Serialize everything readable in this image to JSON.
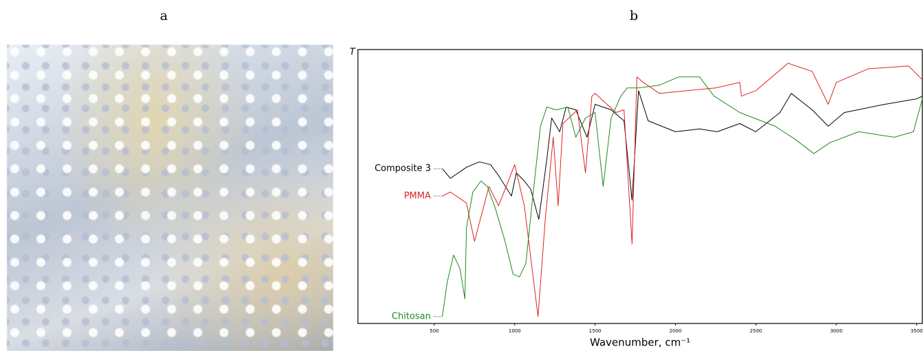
{
  "panel_labels": {
    "a": "a",
    "b": "b"
  },
  "chart_data": {
    "type": "line",
    "x_label": "Wavenumber, cm⁻¹",
    "y_label": "T",
    "xlim": [
      25,
      3535
    ],
    "ylim": [
      0,
      100
    ],
    "xticks": [
      500,
      1000,
      1500,
      2000,
      2500,
      3000,
      3500
    ],
    "series": [
      {
        "name": "Composite 3",
        "color": "#000000",
        "x": [
          550,
          600,
          700,
          780,
          850,
          900,
          980,
          1010,
          1060,
          1100,
          1150,
          1200,
          1230,
          1280,
          1320,
          1380,
          1450,
          1500,
          1600,
          1680,
          1730,
          1770,
          1830,
          2000,
          2150,
          2260,
          2400,
          2500,
          2650,
          2720,
          2850,
          2950,
          3050,
          3300,
          3500,
          3535
        ],
        "values": [
          56.5,
          53,
          57,
          59,
          58,
          54,
          46.5,
          55,
          52,
          49,
          38,
          60,
          75,
          70,
          79,
          78,
          68,
          80,
          78,
          74,
          45,
          85,
          74,
          70,
          71,
          70,
          73,
          70,
          77,
          84,
          78,
          72,
          77,
          80,
          82,
          83
        ]
      },
      {
        "name": "PMMA",
        "color": "#e02020",
        "x": [
          550,
          600,
          700,
          750,
          840,
          900,
          1000,
          1060,
          1145,
          1190,
          1240,
          1270,
          1300,
          1390,
          1440,
          1480,
          1500,
          1630,
          1680,
          1730,
          1760,
          1800,
          1900,
          2250,
          2400,
          2410,
          2500,
          2700,
          2850,
          2950,
          3000,
          3200,
          3450,
          3535
        ],
        "values": [
          46.5,
          48,
          44,
          30,
          50,
          43,
          58,
          43,
          2.5,
          38,
          68,
          43,
          73,
          78,
          55,
          83,
          84,
          77,
          78,
          29,
          90,
          88,
          84,
          86,
          88,
          83,
          85,
          95,
          92,
          80,
          88,
          93,
          94,
          89
        ]
      },
      {
        "name": "Chitosan",
        "color": "#1a8a1a",
        "x": [
          550,
          580,
          620,
          660,
          690,
          700,
          740,
          790,
          830,
          880,
          940,
          990,
          1030,
          1070,
          1110,
          1160,
          1200,
          1260,
          1330,
          1380,
          1440,
          1500,
          1550,
          1600,
          1660,
          1700,
          1770,
          1900,
          2020,
          2150,
          2240,
          2400,
          2620,
          2750,
          2860,
          2960,
          3140,
          3360,
          3480,
          3535
        ],
        "values": [
          2.5,
          15,
          25,
          20,
          9,
          35,
          48,
          52,
          50,
          42,
          30,
          18,
          17,
          22,
          45,
          72,
          79,
          78,
          79,
          68,
          75,
          77,
          50,
          75,
          83,
          86,
          86,
          87,
          90,
          90,
          83,
          77,
          72,
          67,
          62,
          66,
          70,
          68,
          70,
          82
        ]
      }
    ]
  }
}
